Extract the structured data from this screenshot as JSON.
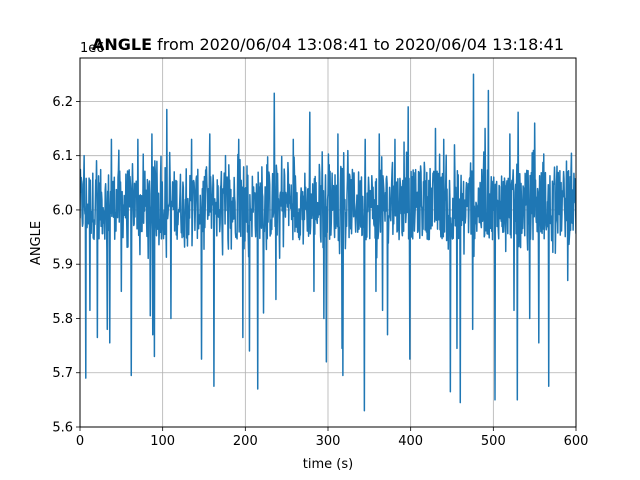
{
  "chart_data": {
    "type": "line",
    "title_bold": "ANGLE",
    "title_rest": " from 2020/06/04 13:08:41 to 2020/06/04 13:18:41",
    "xlabel": "time (s)",
    "ylabel": "ANGLE",
    "y_offset_label": "1e6",
    "xlim": [
      0,
      600
    ],
    "ylim": [
      5.6,
      6.28
    ],
    "x_ticks": [
      0,
      100,
      200,
      300,
      400,
      500,
      600
    ],
    "x_tick_labels": [
      "0",
      "100",
      "200",
      "300",
      "400",
      "500",
      "600"
    ],
    "y_ticks": [
      5.6,
      5.7,
      5.8,
      5.9,
      6.0,
      6.1,
      6.2
    ],
    "y_tick_labels": [
      "5.6",
      "5.7",
      "5.8",
      "5.9",
      "6.0",
      "6.1",
      "6.2"
    ],
    "grid": true,
    "line_color": "#1f77b4",
    "noise_band": {
      "center": 6.01,
      "amplitude": 0.065
    },
    "spikes_up": [
      [
        5,
        6.1
      ],
      [
        38,
        6.13
      ],
      [
        47,
        6.11
      ],
      [
        70,
        6.13
      ],
      [
        87,
        6.14
      ],
      [
        105,
        6.185
      ],
      [
        135,
        6.13
      ],
      [
        157,
        6.14
      ],
      [
        192,
        6.13
      ],
      [
        215,
        6.12
      ],
      [
        235,
        6.215
      ],
      [
        258,
        6.13
      ],
      [
        278,
        6.18
      ],
      [
        312,
        6.14
      ],
      [
        345,
        6.13
      ],
      [
        362,
        6.14
      ],
      [
        381,
        6.13
      ],
      [
        392,
        6.125
      ],
      [
        397,
        6.19
      ],
      [
        430,
        6.15
      ],
      [
        440,
        6.13
      ],
      [
        453,
        6.12
      ],
      [
        476,
        6.25
      ],
      [
        490,
        6.15
      ],
      [
        494,
        6.22
      ],
      [
        520,
        6.14
      ],
      [
        530,
        6.18
      ],
      [
        550,
        6.16
      ]
    ],
    "spikes_down": [
      [
        7,
        5.69
      ],
      [
        12,
        5.815
      ],
      [
        21,
        5.765
      ],
      [
        33,
        5.78
      ],
      [
        36,
        5.755
      ],
      [
        50,
        5.85
      ],
      [
        62,
        5.695
      ],
      [
        85,
        5.805
      ],
      [
        88,
        5.77
      ],
      [
        90,
        5.73
      ],
      [
        110,
        5.8
      ],
      [
        147,
        5.725
      ],
      [
        162,
        5.675
      ],
      [
        197,
        5.765
      ],
      [
        205,
        5.74
      ],
      [
        215,
        5.67
      ],
      [
        222,
        5.81
      ],
      [
        237,
        5.835
      ],
      [
        283,
        5.85
      ],
      [
        295,
        5.8
      ],
      [
        298,
        5.72
      ],
      [
        317,
        5.745
      ],
      [
        318,
        5.695
      ],
      [
        344,
        5.63
      ],
      [
        358,
        5.85
      ],
      [
        366,
        5.815
      ],
      [
        372,
        5.77
      ],
      [
        399,
        5.725
      ],
      [
        448,
        5.665
      ],
      [
        456,
        5.745
      ],
      [
        460,
        5.645
      ],
      [
        475,
        5.78
      ],
      [
        502,
        5.65
      ],
      [
        525,
        5.815
      ],
      [
        529,
        5.65
      ],
      [
        544,
        5.8
      ],
      [
        555,
        5.755
      ],
      [
        567,
        5.675
      ],
      [
        590,
        5.87
      ]
    ]
  }
}
